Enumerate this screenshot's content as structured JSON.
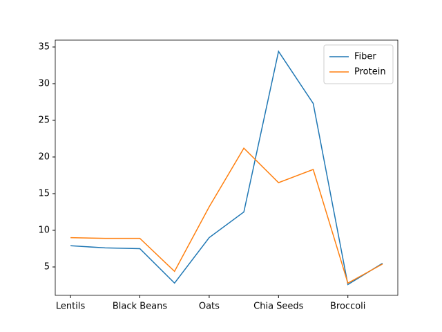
{
  "chart_data": {
    "type": "line",
    "categories": [
      "Lentils",
      null,
      "Black Beans",
      null,
      "Oats",
      null,
      "Chia Seeds",
      null,
      "Broccoli",
      null
    ],
    "series": [
      {
        "name": "Fiber",
        "color": "#1f77b4",
        "values": [
          7.9,
          7.6,
          7.5,
          2.8,
          9.0,
          12.5,
          34.4,
          27.3,
          2.6,
          5.5
        ]
      },
      {
        "name": "Protein",
        "color": "#ff7f0e",
        "values": [
          9.0,
          8.9,
          8.9,
          4.4,
          13.2,
          21.2,
          16.5,
          18.3,
          2.8,
          5.4
        ]
      }
    ],
    "ylim": [
      1.13,
      35.94
    ],
    "yticks": [
      5,
      10,
      15,
      20,
      25,
      30,
      35
    ],
    "legend": "upper right",
    "grid": false
  }
}
